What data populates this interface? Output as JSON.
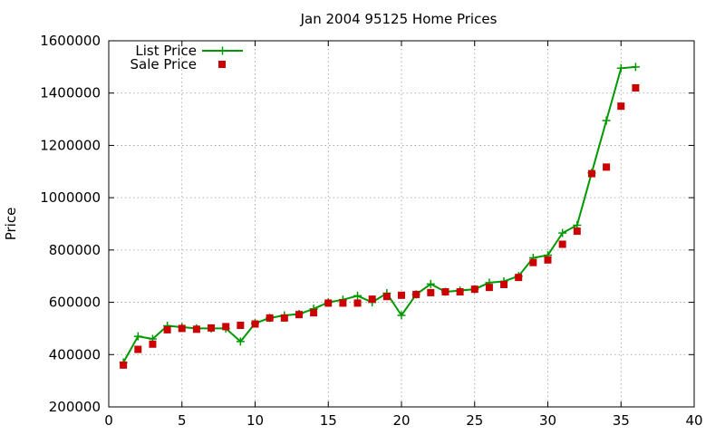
{
  "chart_data": {
    "type": "line",
    "title": "Jan 2004 95125 Home Prices",
    "xlabel": "",
    "ylabel": "Price",
    "xlim": [
      0,
      40
    ],
    "ylim": [
      200000,
      1600000
    ],
    "xticks": [
      0,
      5,
      10,
      15,
      20,
      25,
      30,
      35,
      40
    ],
    "yticks": [
      200000,
      400000,
      600000,
      800000,
      1000000,
      1200000,
      1400000,
      1600000
    ],
    "grid": true,
    "legend_position": "top-left",
    "series": [
      {
        "name": "List Price",
        "style": "line-with-plus-markers",
        "color": "#009900",
        "x": [
          1,
          2,
          3,
          4,
          5,
          6,
          7,
          8,
          9,
          10,
          11,
          12,
          13,
          14,
          15,
          16,
          17,
          18,
          19,
          20,
          21,
          22,
          23,
          24,
          25,
          26,
          27,
          28,
          29,
          30,
          31,
          32,
          33,
          34,
          35,
          36
        ],
        "y": [
          370000,
          470000,
          460000,
          510000,
          505000,
          500000,
          500000,
          500000,
          450000,
          520000,
          540000,
          550000,
          555000,
          575000,
          600000,
          610000,
          625000,
          600000,
          635000,
          550000,
          630000,
          670000,
          640000,
          645000,
          650000,
          675000,
          680000,
          700000,
          770000,
          780000,
          865000,
          895000,
          1095000,
          1295000,
          1495000,
          1500000
        ]
      },
      {
        "name": "Sale Price",
        "style": "square-markers",
        "color": "#cc0000",
        "x": [
          1,
          2,
          3,
          4,
          5,
          6,
          7,
          8,
          9,
          10,
          11,
          12,
          13,
          14,
          15,
          16,
          17,
          18,
          19,
          20,
          21,
          22,
          23,
          24,
          25,
          26,
          27,
          28,
          29,
          30,
          31,
          32,
          33,
          34,
          35,
          36
        ],
        "y": [
          360000,
          420000,
          440000,
          495000,
          500000,
          497000,
          502000,
          507000,
          512000,
          517000,
          540000,
          540000,
          553000,
          560000,
          597000,
          597000,
          597000,
          612000,
          622000,
          627000,
          630000,
          637000,
          640000,
          640000,
          650000,
          657000,
          668000,
          695000,
          752000,
          762000,
          822000,
          872000,
          1092000,
          1117000,
          1350000,
          1420000
        ]
      }
    ]
  }
}
